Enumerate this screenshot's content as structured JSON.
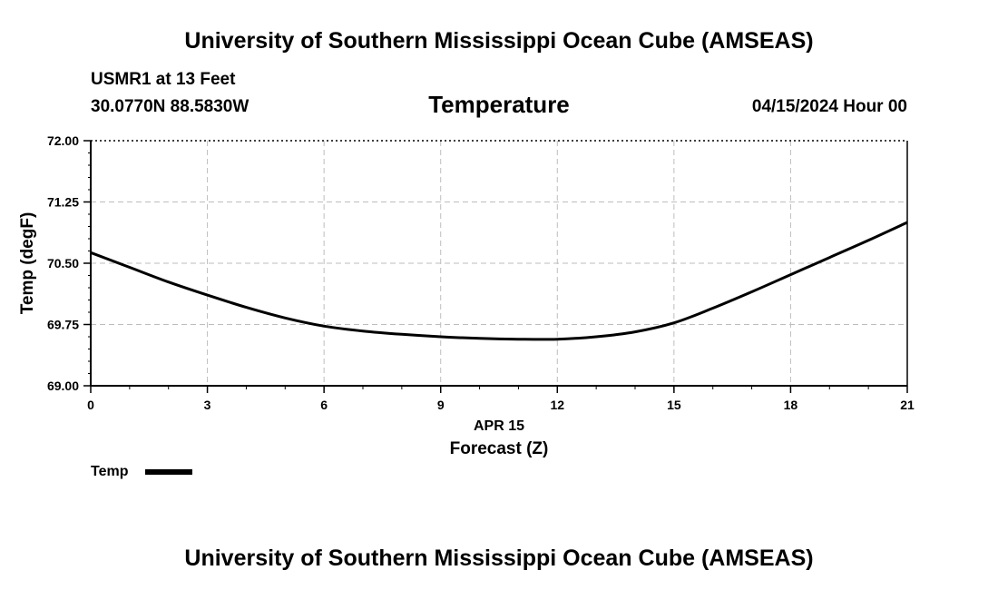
{
  "header": {
    "title": "University of Southern Mississippi Ocean Cube (AMSEAS)",
    "station": "USMR1 at 13 Feet",
    "coords": "30.0770N  88.5830W",
    "datetime": "04/15/2024 Hour 00"
  },
  "footer": {
    "title": "University of Southern Mississippi Ocean Cube (AMSEAS)"
  },
  "chart_data": {
    "type": "line",
    "title": "Temperature",
    "xlabel": "Forecast (Z)",
    "xsublabel": "APR 15",
    "ylabel": "Temp (degF)",
    "xlim": [
      0,
      21
    ],
    "ylim": [
      69.0,
      72.0
    ],
    "xticks": [
      0,
      3,
      6,
      9,
      12,
      15,
      18,
      21
    ],
    "xtick_labels": [
      "0",
      "3",
      "6",
      "9",
      "12",
      "15",
      "18",
      "21"
    ],
    "yticks": [
      69.0,
      69.75,
      70.5,
      71.25,
      72.0
    ],
    "ytick_labels": [
      "69.00",
      "69.75",
      "70.50",
      "71.25",
      "72.00"
    ],
    "grid": true,
    "legend": "bottom-left",
    "series": [
      {
        "name": "Temp",
        "color": "#000000",
        "x": [
          0,
          1,
          2,
          3,
          4,
          5,
          6,
          7,
          8,
          9,
          10,
          11,
          12,
          13,
          14,
          15,
          16,
          17,
          18,
          19,
          20,
          21
        ],
        "y": [
          70.63,
          70.45,
          70.27,
          70.11,
          69.96,
          69.83,
          69.73,
          69.67,
          69.63,
          69.6,
          69.58,
          69.57,
          69.57,
          69.6,
          69.66,
          69.77,
          69.95,
          70.15,
          70.36,
          70.57,
          70.78,
          71.0
        ]
      }
    ]
  }
}
